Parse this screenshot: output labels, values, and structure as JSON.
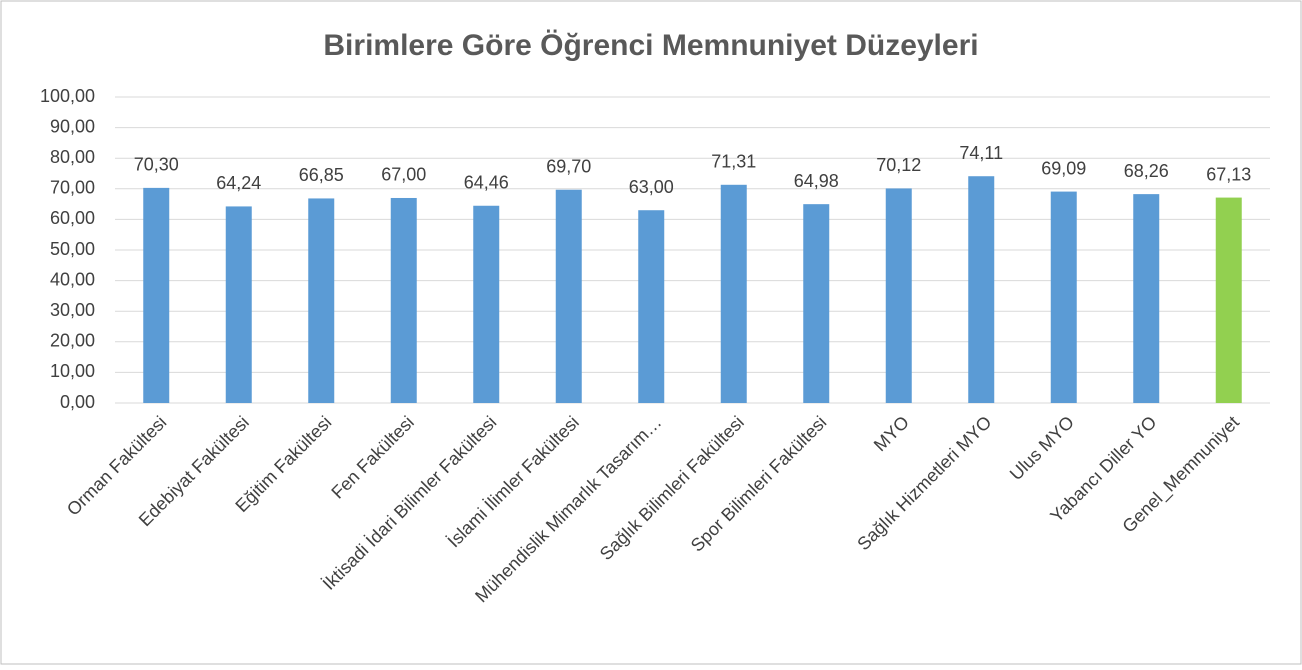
{
  "chart_data": {
    "type": "bar",
    "title": "Birimlere Göre Öğrenci Memnuniyet Düzeyleri",
    "categories": [
      "Orman Fakültesi",
      "Edebiyat Fakültesi",
      "Eğitim Fakültesi",
      "Fen Fakültesi",
      "İktisadi İdari Bilimler Fakültesi",
      "İslami İlimler Fakültesi",
      "Mühendislik Mimarlık Tasarım…",
      "Sağlık Bilimleri Fakültesi",
      "Spor Bilimleri Fakültesi",
      "MYO",
      "Sağlık Hizmetleri MYO",
      "Ulus MYO",
      "Yabancı Diller YO",
      "Genel_Memnuniyet"
    ],
    "values": [
      70.3,
      64.24,
      66.85,
      67.0,
      64.46,
      69.7,
      63.0,
      71.31,
      64.98,
      70.12,
      74.11,
      69.09,
      68.26,
      67.13
    ],
    "value_labels": [
      "70,30",
      "64,24",
      "66,85",
      "67,00",
      "64,46",
      "69,70",
      "63,00",
      "71,31",
      "64,98",
      "70,12",
      "74,11",
      "69,09",
      "68,26",
      "67,13"
    ],
    "colors": [
      "#5b9bd5",
      "#5b9bd5",
      "#5b9bd5",
      "#5b9bd5",
      "#5b9bd5",
      "#5b9bd5",
      "#5b9bd5",
      "#5b9bd5",
      "#5b9bd5",
      "#5b9bd5",
      "#5b9bd5",
      "#5b9bd5",
      "#5b9bd5",
      "#92d050"
    ],
    "ylim": [
      0,
      100
    ],
    "yticks": [
      {
        "value": 0,
        "label": "0,00"
      },
      {
        "value": 10,
        "label": "10,00"
      },
      {
        "value": 20,
        "label": "20,00"
      },
      {
        "value": 30,
        "label": "30,00"
      },
      {
        "value": 40,
        "label": "40,00"
      },
      {
        "value": 50,
        "label": "50,00"
      },
      {
        "value": 60,
        "label": "60,00"
      },
      {
        "value": 70,
        "label": "70,00"
      },
      {
        "value": 80,
        "label": "80,00"
      },
      {
        "value": 90,
        "label": "90,00"
      },
      {
        "value": 100,
        "label": "100,00"
      }
    ],
    "grid": true
  }
}
